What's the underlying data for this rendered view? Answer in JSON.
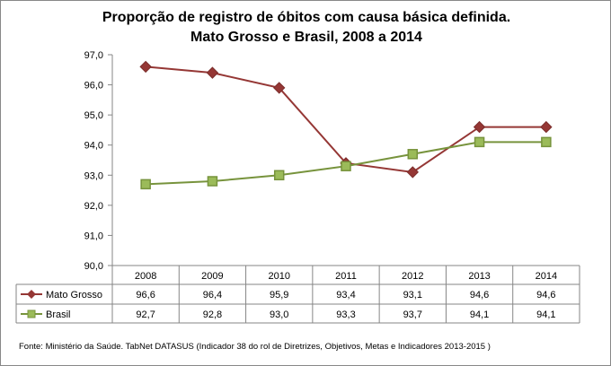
{
  "chart_data": {
    "type": "line",
    "title": [
      "Proporção de registro de óbitos com causa básica definida.",
      "Mato Grosso e Brasil, 2008 a 2014"
    ],
    "categories": [
      "2008",
      "2009",
      "2010",
      "2011",
      "2012",
      "2013",
      "2014"
    ],
    "series": [
      {
        "name": "Mato Grosso",
        "values": [
          96.6,
          96.4,
          95.9,
          93.4,
          93.1,
          94.6,
          94.6
        ],
        "labels": [
          "96,6",
          "96,4",
          "95,9",
          "93,4",
          "93,1",
          "94,6",
          "94,6"
        ],
        "color": "#953735",
        "marker": "diamond"
      },
      {
        "name": "Brasil",
        "values": [
          92.7,
          92.8,
          93.0,
          93.3,
          93.7,
          94.1,
          94.1
        ],
        "labels": [
          "92,7",
          "92,8",
          "93,0",
          "93,3",
          "93,7",
          "94,1",
          "94,1"
        ],
        "color": "#77933c",
        "fill": "#9bbb59",
        "marker": "square"
      }
    ],
    "ylim": [
      90,
      97
    ],
    "yticks": [
      "90,0",
      "91,0",
      "92,0",
      "93,0",
      "94,0",
      "95,0",
      "96,0",
      "97,0"
    ],
    "legend": "data-table",
    "grid": false
  },
  "source": "Fonte: Ministério da Saúde. TabNet DATASUS (Indicador 38  do rol de Diretrizes, Objetivos, Metas e Indicadores 2013-2015 )"
}
